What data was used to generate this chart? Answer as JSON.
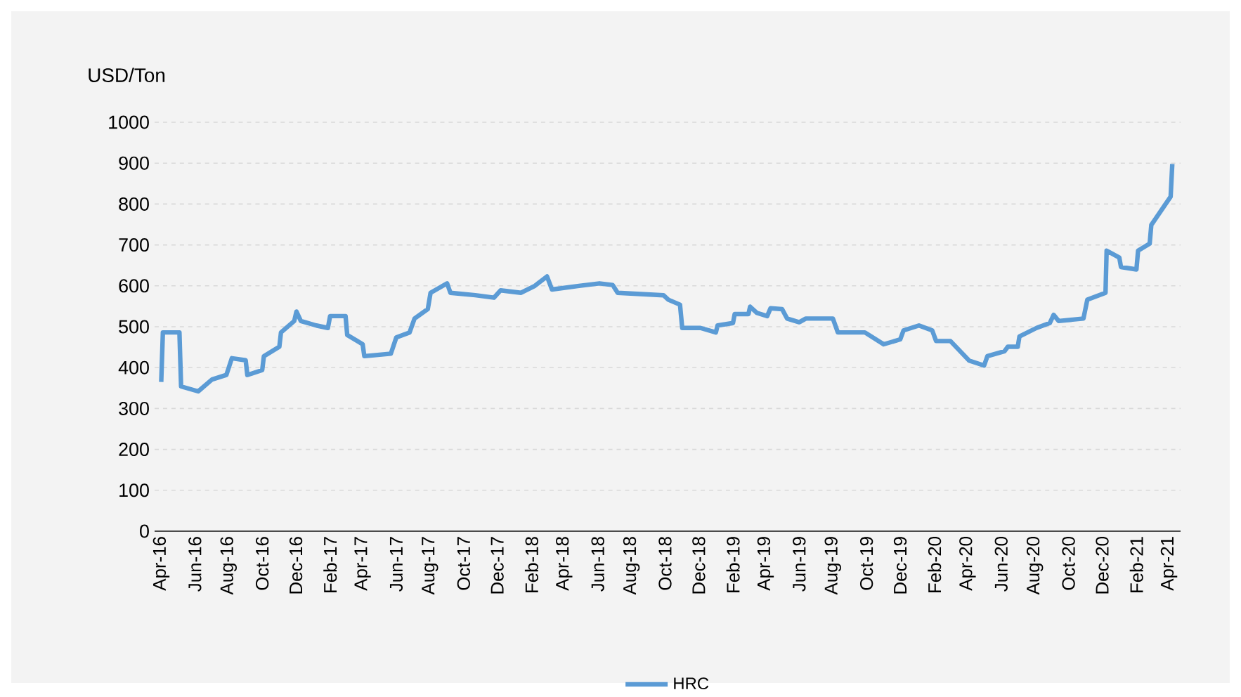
{
  "chart_data": {
    "type": "line",
    "ylabel": "USD/Ton",
    "xlim": [
      "2016-03-20",
      "2021-04-22"
    ],
    "ylim": [
      0,
      1000
    ],
    "yticks": [
      0,
      100,
      200,
      300,
      400,
      500,
      600,
      700,
      800,
      900,
      1000
    ],
    "xticks": [
      {
        "value": "2016-04-01",
        "label": "Apr-16"
      },
      {
        "value": "2016-06-01",
        "label": "Jun-16"
      },
      {
        "value": "2016-08-01",
        "label": "Aug-16"
      },
      {
        "value": "2016-10-01",
        "label": "Oct-16"
      },
      {
        "value": "2016-12-01",
        "label": "Dec-16"
      },
      {
        "value": "2017-02-01",
        "label": "Feb-17"
      },
      {
        "value": "2017-04-01",
        "label": "Apr-17"
      },
      {
        "value": "2017-06-01",
        "label": "Jun-17"
      },
      {
        "value": "2017-08-01",
        "label": "Aug-17"
      },
      {
        "value": "2017-10-01",
        "label": "Oct-17"
      },
      {
        "value": "2017-12-01",
        "label": "Dec-17"
      },
      {
        "value": "2018-02-01",
        "label": "Feb-18"
      },
      {
        "value": "2018-04-01",
        "label": "Apr-18"
      },
      {
        "value": "2018-06-01",
        "label": "Jun-18"
      },
      {
        "value": "2018-08-01",
        "label": "Aug-18"
      },
      {
        "value": "2018-10-01",
        "label": "Oct-18"
      },
      {
        "value": "2018-12-01",
        "label": "Dec-18"
      },
      {
        "value": "2019-02-01",
        "label": "Feb-19"
      },
      {
        "value": "2019-04-01",
        "label": "Apr-19"
      },
      {
        "value": "2019-06-01",
        "label": "Jun-19"
      },
      {
        "value": "2019-08-01",
        "label": "Aug-19"
      },
      {
        "value": "2019-10-01",
        "label": "Oct-19"
      },
      {
        "value": "2019-12-01",
        "label": "Dec-19"
      },
      {
        "value": "2020-02-01",
        "label": "Feb-20"
      },
      {
        "value": "2020-04-01",
        "label": "Apr-20"
      },
      {
        "value": "2020-06-01",
        "label": "Jun-20"
      },
      {
        "value": "2020-08-01",
        "label": "Aug-20"
      },
      {
        "value": "2020-10-01",
        "label": "Oct-20"
      },
      {
        "value": "2020-12-01",
        "label": "Dec-20"
      },
      {
        "value": "2021-02-01",
        "label": "Feb-21"
      },
      {
        "value": "2021-04-01",
        "label": "Apr-21"
      }
    ],
    "grid": "y",
    "legend": "bottom",
    "marker": "none",
    "line_style": "solid",
    "series": [
      {
        "name": "HRC",
        "color": "#5b9bd5",
        "x": [
          "2016-04-01",
          "2016-04-04",
          "2016-05-04",
          "2016-05-07",
          "2016-06-07",
          "2016-07-02",
          "2016-07-28",
          "2016-08-07",
          "2016-09-01",
          "2016-09-04",
          "2016-10-01",
          "2016-10-04",
          "2016-11-01",
          "2016-11-04",
          "2016-11-28",
          "2016-12-02",
          "2016-12-10",
          "2017-01-07",
          "2017-01-28",
          "2017-02-01",
          "2017-03-01",
          "2017-03-04",
          "2017-04-01",
          "2017-04-04",
          "2017-05-22",
          "2017-06-01",
          "2017-06-25",
          "2017-07-04",
          "2017-07-28",
          "2017-08-02",
          "2017-09-01",
          "2017-09-07",
          "2017-10-22",
          "2017-11-25",
          "2017-12-07",
          "2018-01-13",
          "2018-02-07",
          "2018-03-01",
          "2018-03-10",
          "2018-04-28",
          "2018-06-04",
          "2018-06-28",
          "2018-07-07",
          "2018-09-28",
          "2018-10-07",
          "2018-10-28",
          "2018-11-01",
          "2018-12-04",
          "2019-01-01",
          "2019-01-04",
          "2019-02-01",
          "2019-02-04",
          "2019-03-01",
          "2019-03-04",
          "2019-03-16",
          "2019-04-04",
          "2019-04-10",
          "2019-05-01",
          "2019-05-10",
          "2019-06-01",
          "2019-06-13",
          "2019-08-01",
          "2019-08-10",
          "2019-09-28",
          "2019-11-01",
          "2019-12-01",
          "2019-12-07",
          "2020-01-04",
          "2020-01-28",
          "2020-02-04",
          "2020-03-01",
          "2020-04-04",
          "2020-05-01",
          "2020-05-07",
          "2020-06-07",
          "2020-06-13",
          "2020-07-01",
          "2020-07-04",
          "2020-08-04",
          "2020-08-28",
          "2020-09-04",
          "2020-09-13",
          "2020-10-28",
          "2020-11-04",
          "2020-12-07",
          "2020-12-09",
          "2021-01-01",
          "2021-01-04",
          "2021-02-01",
          "2021-02-04",
          "2021-02-25",
          "2021-02-28",
          "2021-04-04",
          "2021-04-07"
        ],
        "values": [
          365,
          486,
          486,
          354,
          342,
          371,
          382,
          423,
          418,
          382,
          394,
          428,
          451,
          486,
          514,
          537,
          514,
          503,
          497,
          526,
          526,
          480,
          457,
          428,
          434,
          474,
          486,
          520,
          543,
          583,
          606,
          583,
          577,
          571,
          589,
          583,
          600,
          623,
          591,
          600,
          606,
          602,
          583,
          577,
          566,
          554,
          497,
          497,
          486,
          503,
          509,
          531,
          531,
          549,
          534,
          526,
          545,
          543,
          520,
          511,
          520,
          520,
          486,
          486,
          457,
          469,
          491,
          503,
          491,
          465,
          465,
          417,
          405,
          428,
          440,
          451,
          451,
          476,
          497,
          509,
          529,
          514,
          520,
          566,
          583,
          686,
          669,
          646,
          640,
          686,
          703,
          749,
          818,
          898
        ]
      }
    ]
  }
}
